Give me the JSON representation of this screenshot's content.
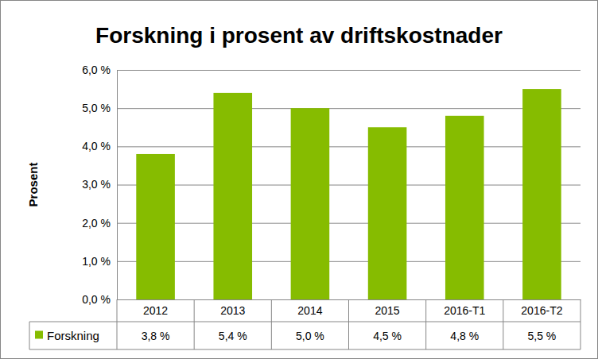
{
  "chart_data": {
    "type": "bar",
    "title": "Forskning i prosent av driftskostnader",
    "y_label": "Prosent",
    "categories": [
      "2012",
      "2013",
      "2014",
      "2015",
      "2016-T1",
      "2016-T2"
    ],
    "series": [
      {
        "name": "Forskning",
        "color": "#86bc00",
        "values": [
          3.8,
          5.4,
          5.0,
          4.5,
          4.8,
          5.5
        ],
        "value_labels": [
          "3,8 %",
          "5,4 %",
          "5,0 %",
          "4,5 %",
          "4,8 %",
          "5,5 %"
        ]
      }
    ],
    "ylim": [
      0,
      6
    ],
    "yticks": [
      {
        "value": 0,
        "label": "0,0 %"
      },
      {
        "value": 1,
        "label": "1,0 %"
      },
      {
        "value": 2,
        "label": "2,0 %"
      },
      {
        "value": 3,
        "label": "3,0 %"
      },
      {
        "value": 4,
        "label": "4,0 %"
      },
      {
        "value": 5,
        "label": "5,0 %"
      },
      {
        "value": 6,
        "label": "6,0 %"
      }
    ],
    "grid": true,
    "data_labels": true
  }
}
